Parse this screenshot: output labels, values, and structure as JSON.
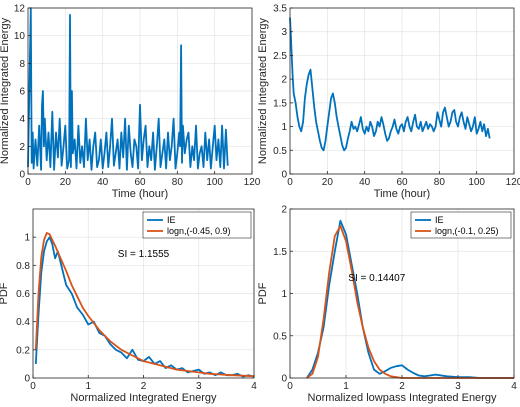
{
  "colors": {
    "ie": "#0072BD",
    "logn": "#D95319",
    "grid": "#e3e3e3",
    "axis": "#262626"
  },
  "chart_data": [
    {
      "type": "line",
      "xlabel": "Time (hour)",
      "ylabel": "Normalized Integrated Energy",
      "xlim": [
        0,
        120
      ],
      "ylim": [
        0,
        12
      ],
      "xticks": [
        0,
        20,
        40,
        60,
        80,
        100,
        120
      ],
      "yticks": [
        0,
        2,
        4,
        6,
        8,
        10,
        12
      ],
      "tick_labels_x": [
        "0",
        "20",
        "40",
        "60",
        "80",
        "100",
        "120"
      ],
      "tick_labels_y": [
        "0",
        "2",
        "4",
        "6",
        "8",
        "10",
        "12"
      ],
      "grid": true,
      "series": [
        {
          "x": [
            0,
            1.5,
            2,
            2.5,
            3,
            4,
            5,
            6,
            7,
            7.5,
            8,
            8.5,
            9,
            10,
            11,
            12,
            13,
            14,
            15,
            16,
            17,
            18,
            19,
            20,
            21,
            22,
            22.5,
            23,
            23.5,
            24,
            25,
            26,
            27,
            28,
            29,
            30,
            31,
            32,
            33,
            34,
            35,
            36,
            37,
            38,
            39,
            40,
            41,
            42,
            43,
            44,
            45,
            46,
            47,
            48,
            49,
            50,
            51,
            52,
            53,
            54,
            55,
            56,
            57,
            58,
            59,
            60,
            61,
            62,
            63,
            64,
            65,
            66,
            67,
            68,
            69,
            70,
            71,
            72,
            73,
            74,
            75,
            76,
            77,
            78,
            79,
            80,
            81,
            81.5,
            82,
            82.5,
            83,
            84,
            85,
            86,
            87,
            88,
            89,
            90,
            91,
            92,
            93,
            94,
            95,
            96,
            97,
            98,
            99,
            100,
            101,
            102,
            103,
            104,
            105,
            106,
            107
          ],
          "y": [
            0.5,
            12,
            0.8,
            3,
            0.4,
            2.5,
            0.6,
            3.5,
            0.3,
            5,
            6,
            2,
            4,
            1,
            3,
            0.5,
            4.5,
            0.3,
            3,
            1.2,
            4,
            0.6,
            2,
            3.5,
            0.4,
            1,
            11.5,
            0.5,
            6,
            1.5,
            2.5,
            0.4,
            3.5,
            0.8,
            2,
            0.5,
            4,
            1,
            2.5,
            0.3,
            2,
            3,
            0.5,
            1,
            2.5,
            0.4,
            1.5,
            3,
            0.5,
            2,
            4,
            0.6,
            1.5,
            2.5,
            0.4,
            3,
            1.2,
            4,
            0.3,
            3.5,
            1.5,
            0.5,
            2.5,
            2,
            0.4,
            5,
            1,
            2.5,
            3.5,
            0.5,
            2,
            1,
            3,
            0.3,
            2,
            4,
            0.5,
            1.5,
            2.5,
            0.4,
            3,
            1,
            2,
            4,
            0.4,
            1.5,
            3,
            2,
            9.3,
            0.8,
            3.5,
            1.5,
            2.5,
            3,
            0.5,
            2,
            1,
            3.5,
            0.4,
            1.5,
            2,
            0.5,
            3,
            1,
            2.5,
            0.4,
            2,
            3.5,
            1,
            2.5,
            0.5,
            3.5,
            0.4,
            3.2,
            0.6
          ]
        }
      ]
    },
    {
      "type": "line",
      "xlabel": "Time (hour)",
      "ylabel": "Normalized Integrated Energy",
      "xlim": [
        0,
        120
      ],
      "ylim": [
        0,
        3.5
      ],
      "xticks": [
        0,
        20,
        40,
        60,
        80,
        100,
        120
      ],
      "yticks": [
        0,
        0.5,
        1,
        1.5,
        2,
        2.5,
        3,
        3.5
      ],
      "tick_labels_x": [
        "0",
        "20",
        "40",
        "60",
        "80",
        "100",
        "120"
      ],
      "tick_labels_y": [
        "0",
        "0.5",
        "1",
        "1.5",
        "2",
        "2.5",
        "3",
        "3.5"
      ],
      "grid": true,
      "series": [
        {
          "x": [
            0,
            0.5,
            1,
            1.5,
            2,
            3,
            4,
            5,
            6,
            7,
            8,
            9,
            10,
            11,
            12,
            13,
            14,
            15,
            16,
            17,
            18,
            19,
            20,
            21,
            22,
            23,
            24,
            25,
            26,
            27,
            28,
            29,
            30,
            31,
            32,
            33,
            34,
            35,
            36,
            37,
            38,
            39,
            40,
            41,
            42,
            43,
            44,
            45,
            46,
            47,
            48,
            49,
            50,
            51,
            52,
            53,
            54,
            55,
            56,
            57,
            58,
            59,
            60,
            61,
            62,
            63,
            64,
            65,
            66,
            67,
            68,
            69,
            70,
            71,
            72,
            73,
            74,
            75,
            76,
            77,
            78,
            79,
            80,
            81,
            82,
            83,
            84,
            85,
            86,
            87,
            88,
            89,
            90,
            91,
            92,
            93,
            94,
            95,
            96,
            97,
            98,
            99,
            100,
            101,
            102,
            103,
            104,
            105,
            106,
            107
          ],
          "y": [
            3.3,
            2.9,
            2.4,
            2.0,
            1.7,
            1.5,
            1.2,
            1.0,
            0.9,
            1.1,
            1.6,
            1.9,
            2.1,
            2.2,
            1.8,
            1.4,
            1.1,
            0.9,
            0.7,
            0.55,
            0.5,
            0.7,
            1.0,
            1.3,
            1.6,
            1.7,
            1.5,
            1.2,
            1.0,
            0.8,
            0.6,
            0.5,
            0.55,
            0.75,
            0.9,
            1.1,
            0.95,
            1.0,
            0.9,
            1.05,
            1.2,
            0.95,
            0.85,
            1.0,
            0.9,
            1.1,
            1.0,
            0.8,
            0.9,
            1.1,
            1.0,
            1.2,
            1.05,
            0.85,
            0.7,
            0.75,
            0.9,
            1.0,
            1.15,
            0.95,
            0.85,
            1.0,
            1.05,
            0.9,
            1.1,
            1.2,
            1.0,
            0.9,
            1.1,
            1.25,
            1.0,
            0.95,
            1.1,
            0.9,
            1.0,
            1.1,
            0.95,
            1.05,
            1.0,
            0.9,
            1.0,
            1.3,
            1.15,
            1.0,
            1.3,
            1.4,
            1.2,
            1.0,
            1.1,
            1.3,
            1.35,
            1.1,
            1.0,
            1.2,
            1.3,
            1.1,
            0.95,
            1.2,
            1.05,
            0.9,
            1.0,
            1.2,
            0.85,
            0.95,
            1.1,
            0.9,
            1.05,
            0.8,
            0.95,
            0.75
          ]
        }
      ]
    },
    {
      "type": "line",
      "xlabel": "Normalized Integrated Energy",
      "ylabel": "PDF",
      "xlim": [
        0,
        4
      ],
      "ylim": [
        0,
        1.2
      ],
      "xticks": [
        0,
        1,
        2,
        3,
        4
      ],
      "yticks": [
        0,
        0.2,
        0.4,
        0.6,
        0.8,
        1
      ],
      "tick_labels_x": [
        "0",
        "1",
        "2",
        "3",
        "4"
      ],
      "tick_labels_y": [
        "0",
        "0.2",
        "0.4",
        "0.6",
        "0.8",
        "1"
      ],
      "grid": true,
      "annotation": "SI = 1.1555",
      "legend": "top-right",
      "series": [
        {
          "name": "IE",
          "x": [
            0.05,
            0.1,
            0.15,
            0.2,
            0.25,
            0.3,
            0.35,
            0.4,
            0.45,
            0.5,
            0.6,
            0.7,
            0.8,
            0.9,
            1.0,
            1.1,
            1.2,
            1.3,
            1.4,
            1.5,
            1.6,
            1.7,
            1.8,
            1.9,
            2.0,
            2.1,
            2.2,
            2.3,
            2.4,
            2.5,
            2.6,
            2.7,
            2.8,
            2.9,
            3.0,
            3.1,
            3.2,
            3.3,
            3.4,
            3.5,
            3.6,
            3.7,
            3.8,
            3.9,
            4.0
          ],
          "y": [
            0.1,
            0.45,
            0.75,
            0.9,
            0.97,
            1.0,
            0.95,
            0.85,
            0.9,
            0.82,
            0.66,
            0.6,
            0.5,
            0.45,
            0.38,
            0.4,
            0.32,
            0.3,
            0.24,
            0.2,
            0.18,
            0.14,
            0.2,
            0.13,
            0.12,
            0.15,
            0.1,
            0.12,
            0.07,
            0.09,
            0.06,
            0.07,
            0.04,
            0.05,
            0.06,
            0.03,
            0.04,
            0.02,
            0.04,
            0.02,
            0.02,
            0.03,
            0.01,
            0.02,
            0.01
          ]
        },
        {
          "name": "logn,(-0.45, 0.9)",
          "x": [
            0.05,
            0.1,
            0.15,
            0.2,
            0.25,
            0.3,
            0.35,
            0.4,
            0.5,
            0.6,
            0.7,
            0.8,
            0.9,
            1.0,
            1.2,
            1.4,
            1.6,
            1.8,
            2.0,
            2.2,
            2.4,
            2.6,
            2.8,
            3.0,
            3.2,
            3.4,
            3.6,
            3.8,
            4.0
          ],
          "y": [
            0.2,
            0.6,
            0.86,
            0.98,
            1.03,
            1.02,
            0.98,
            0.94,
            0.85,
            0.76,
            0.66,
            0.58,
            0.5,
            0.44,
            0.34,
            0.26,
            0.2,
            0.16,
            0.12,
            0.1,
            0.08,
            0.06,
            0.05,
            0.04,
            0.03,
            0.025,
            0.02,
            0.016,
            0.013
          ]
        }
      ]
    },
    {
      "type": "line",
      "xlabel": "Normalized lowpass Integrated Energy",
      "ylabel": "PDF",
      "xlim": [
        0,
        4
      ],
      "ylim": [
        0,
        2
      ],
      "xticks": [
        0,
        1,
        2,
        3,
        4
      ],
      "yticks": [
        0,
        0.5,
        1,
        1.5,
        2
      ],
      "tick_labels_x": [
        "0",
        "1",
        "2",
        "3",
        "4"
      ],
      "tick_labels_y": [
        "0",
        "0.5",
        "1",
        "1.5",
        "2"
      ],
      "grid": true,
      "annotation": "SI = 0.14407",
      "legend": "top-right",
      "series": [
        {
          "name": "IE",
          "x": [
            0.3,
            0.4,
            0.5,
            0.6,
            0.7,
            0.8,
            0.9,
            1.0,
            1.1,
            1.2,
            1.3,
            1.4,
            1.5,
            1.6,
            1.7,
            1.8,
            1.9,
            2.0,
            2.1,
            2.2,
            2.3,
            2.4,
            2.5,
            2.6,
            2.8,
            3.0,
            3.2,
            3.4,
            3.6,
            3.8,
            4.0
          ],
          "y": [
            0.0,
            0.1,
            0.3,
            0.6,
            1.1,
            1.5,
            1.86,
            1.7,
            1.35,
            1.0,
            0.6,
            0.3,
            0.1,
            0.05,
            0.08,
            0.12,
            0.14,
            0.15,
            0.1,
            0.06,
            0.03,
            0.02,
            0.03,
            0.04,
            0.02,
            0.01,
            0.01,
            0.0,
            0.0,
            0.0,
            0.0
          ]
        },
        {
          "name": "logn,(-0.1, 0.25)",
          "x": [
            0.3,
            0.4,
            0.5,
            0.6,
            0.7,
            0.8,
            0.9,
            1.0,
            1.1,
            1.2,
            1.3,
            1.4,
            1.5,
            1.6,
            1.7,
            1.8,
            2.0,
            2.5,
            3.0,
            4.0
          ],
          "y": [
            0.0,
            0.05,
            0.25,
            0.7,
            1.25,
            1.68,
            1.8,
            1.62,
            1.28,
            0.9,
            0.6,
            0.36,
            0.2,
            0.1,
            0.05,
            0.02,
            0.0,
            0.0,
            0.0,
            0.0
          ]
        }
      ]
    }
  ]
}
